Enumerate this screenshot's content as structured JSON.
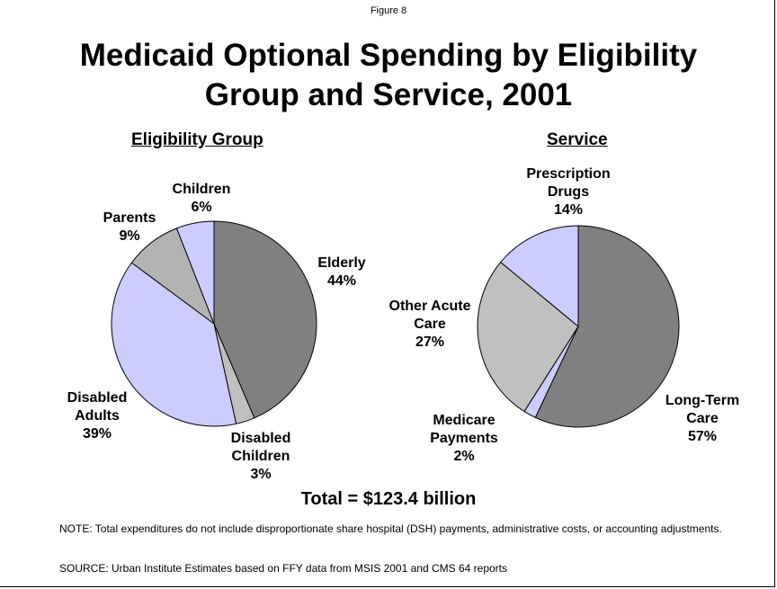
{
  "figure_label": "Figure 8",
  "title_line1": "Medicaid Optional Spending by Eligibility",
  "title_line2": "Group and Service, 2001",
  "total": "Total = $123.4 billion",
  "note": "NOTE: Total expenditures do not include disproportionate share hospital (DSH) payments, administrative costs, or accounting adjustments.",
  "source": "SOURCE: Urban Institute Estimates based on FFY data from MSIS 2001 and CMS 64 reports",
  "chart_data": [
    {
      "type": "pie",
      "title": "Eligibility Group",
      "slices": [
        {
          "label": [
            "Elderly"
          ],
          "value": 44,
          "pct": "44%",
          "color": "#808080"
        },
        {
          "label": [
            "Disabled",
            "Children"
          ],
          "value": 3,
          "pct": "3%",
          "color": "#c0c0c0"
        },
        {
          "label": [
            "Disabled",
            "Adults"
          ],
          "value": 39,
          "pct": "39%",
          "color": "#ccccff"
        },
        {
          "label": [
            "Parents"
          ],
          "value": 9,
          "pct": "9%",
          "color": "#b3b3b3"
        },
        {
          "label": [
            "Children"
          ],
          "value": 6,
          "pct": "6%",
          "color": "#ccccff"
        }
      ]
    },
    {
      "type": "pie",
      "title": "Service",
      "slices": [
        {
          "label": [
            "Long-Term",
            "Care"
          ],
          "value": 57,
          "pct": "57%",
          "color": "#808080"
        },
        {
          "label": [
            "Medicare",
            "Payments"
          ],
          "value": 2,
          "pct": "2%",
          "color": "#ccccff"
        },
        {
          "label": [
            "Other Acute",
            "Care"
          ],
          "value": 27,
          "pct": "27%",
          "color": "#c0c0c0"
        },
        {
          "label": [
            "Prescription",
            "Drugs"
          ],
          "value": 14,
          "pct": "14%",
          "color": "#ccccff"
        }
      ]
    }
  ]
}
